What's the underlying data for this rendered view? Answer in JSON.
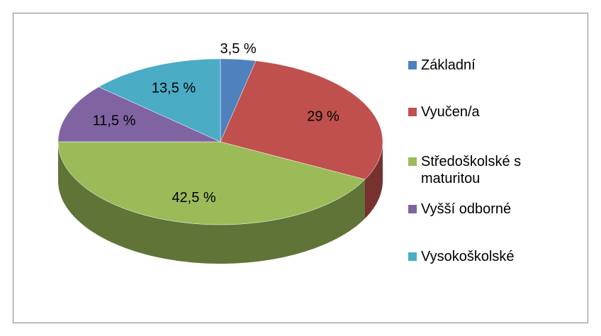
{
  "chart_data": {
    "type": "pie3d",
    "categories": [
      "Základní",
      "Vyučen/a",
      "Středoškolské s maturitou",
      "Vyšší odborné",
      "Vysokoškolské"
    ],
    "values": [
      3.5,
      29,
      42.5,
      11.5,
      13.5
    ],
    "value_labels": [
      "3,5 %",
      "29 %",
      "42,5 %",
      "11,5 %",
      "13,5 %"
    ],
    "colors": [
      "#4f81bd",
      "#c0504d",
      "#9bbb59",
      "#8064a2",
      "#4bacc6"
    ],
    "legend": "right"
  }
}
